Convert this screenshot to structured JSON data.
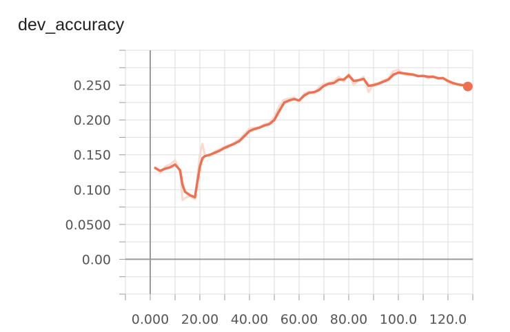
{
  "chart_data": {
    "type": "line",
    "title": "dev_accuracy",
    "xlabel": "",
    "ylabel": "",
    "xlim": [
      -10,
      130
    ],
    "ylim": [
      -0.05,
      0.3
    ],
    "x_ticks": [
      {
        "value": 0,
        "label": "0.000"
      },
      {
        "value": 20,
        "label": "20.00"
      },
      {
        "value": 40,
        "label": "40.00"
      },
      {
        "value": 60,
        "label": "60.00"
      },
      {
        "value": 80,
        "label": "80.00"
      },
      {
        "value": 100,
        "label": "100.0"
      },
      {
        "value": 120,
        "label": "120.0"
      }
    ],
    "y_ticks": [
      {
        "value": 0,
        "label": "0.00"
      },
      {
        "value": 0.05,
        "label": "0.0500"
      },
      {
        "value": 0.1,
        "label": "0.100"
      },
      {
        "value": 0.15,
        "label": "0.150"
      },
      {
        "value": 0.2,
        "label": "0.200"
      },
      {
        "value": 0.25,
        "label": "0.250"
      }
    ],
    "grid": true,
    "colors": {
      "smoothed": "#ee7050",
      "raw": "#fbd9cf",
      "grid": "#dddddd",
      "axis": "#999999"
    },
    "series": [
      {
        "role": "smoothed",
        "x": [
          2,
          4,
          6,
          8,
          10,
          12,
          13,
          14,
          16,
          18,
          20,
          21,
          22,
          24,
          26,
          28,
          30,
          32,
          34,
          36,
          38,
          40,
          42,
          44,
          46,
          48,
          50,
          52,
          54,
          56,
          58,
          60,
          62,
          64,
          66,
          68,
          70,
          72,
          74,
          76,
          78,
          80,
          82,
          84,
          86,
          88,
          90,
          92,
          94,
          96,
          98,
          100,
          102,
          104,
          106,
          108,
          110,
          112,
          114,
          116,
          118,
          120,
          122,
          124,
          126,
          128
        ],
        "y": [
          0.131,
          0.127,
          0.13,
          0.132,
          0.136,
          0.128,
          0.107,
          0.097,
          0.092,
          0.089,
          0.133,
          0.145,
          0.148,
          0.15,
          0.153,
          0.156,
          0.16,
          0.163,
          0.166,
          0.17,
          0.177,
          0.184,
          0.187,
          0.189,
          0.192,
          0.194,
          0.2,
          0.213,
          0.225,
          0.228,
          0.23,
          0.228,
          0.235,
          0.239,
          0.24,
          0.243,
          0.249,
          0.252,
          0.253,
          0.258,
          0.258,
          0.264,
          0.256,
          0.257,
          0.259,
          0.249,
          0.25,
          0.252,
          0.255,
          0.258,
          0.265,
          0.268,
          0.267,
          0.266,
          0.265,
          0.263,
          0.263,
          0.262,
          0.262,
          0.26,
          0.26,
          0.256,
          0.253,
          0.251,
          0.25,
          0.248
        ]
      },
      {
        "role": "raw",
        "x": [
          2,
          4,
          6,
          8,
          10,
          12,
          13,
          14,
          16,
          18,
          20,
          21,
          22,
          24,
          26,
          28,
          30,
          32,
          34,
          36,
          38,
          40,
          42,
          44,
          46,
          48,
          50,
          52,
          54,
          56,
          58,
          60,
          62,
          64,
          66,
          68,
          70,
          72,
          74,
          76,
          78,
          80,
          82,
          84,
          86,
          88,
          90,
          92,
          94,
          96,
          98,
          100,
          102,
          104,
          106,
          108,
          110,
          112,
          114,
          116,
          118,
          120,
          122,
          124,
          126,
          128
        ],
        "y": [
          0.132,
          0.124,
          0.133,
          0.136,
          0.142,
          0.126,
          0.085,
          0.088,
          0.091,
          0.086,
          0.15,
          0.166,
          0.15,
          0.149,
          0.155,
          0.158,
          0.162,
          0.164,
          0.168,
          0.173,
          0.18,
          0.188,
          0.189,
          0.19,
          0.194,
          0.196,
          0.204,
          0.22,
          0.229,
          0.231,
          0.232,
          0.226,
          0.238,
          0.241,
          0.238,
          0.247,
          0.252,
          0.253,
          0.256,
          0.262,
          0.255,
          0.266,
          0.25,
          0.258,
          0.262,
          0.24,
          0.252,
          0.253,
          0.257,
          0.26,
          0.27,
          0.272,
          0.266,
          0.264,
          0.266,
          0.262,
          0.265,
          0.26,
          0.263,
          0.259,
          0.261,
          0.254,
          0.251,
          0.251,
          0.25,
          0.247
        ]
      }
    ],
    "last_point": {
      "x": 128,
      "y": 0.248
    }
  }
}
